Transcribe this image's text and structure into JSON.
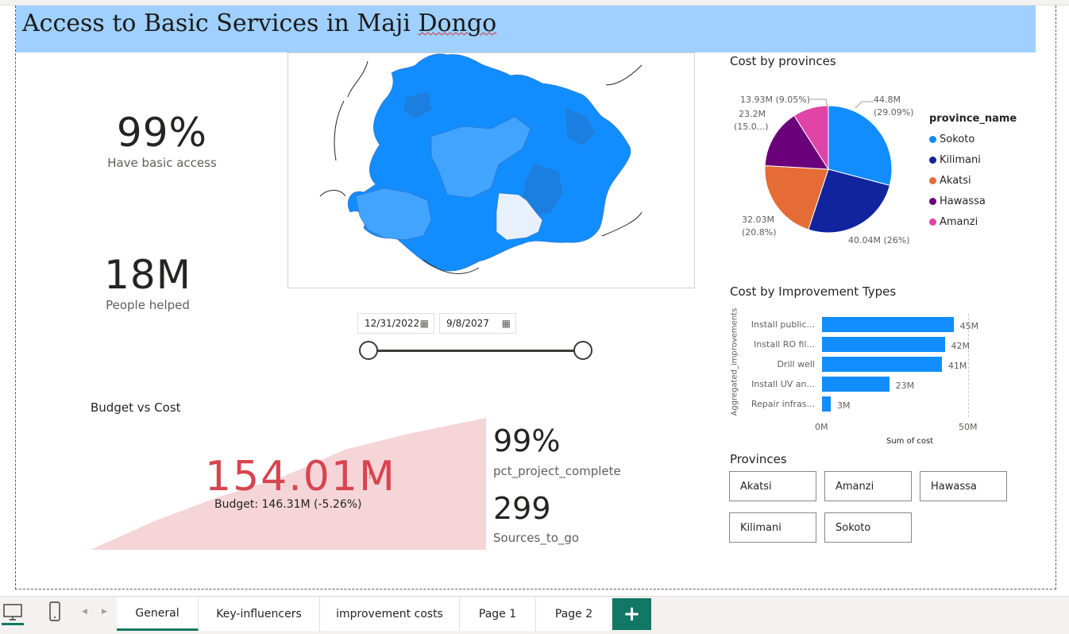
{
  "title": {
    "pre": "Access to Basic Services in Maji ",
    "squiggle": "Dongo"
  },
  "kpis": {
    "basic_access": {
      "value": "99%",
      "label": "Have basic access"
    },
    "people_helped": {
      "value": "18M",
      "label": "People helped"
    }
  },
  "date_filter": {
    "start": "12/31/2022",
    "end": "9/8/2027",
    "calendar_icon": "calendar-icon"
  },
  "budget_vs_cost": {
    "title": "Budget vs Cost",
    "value": "154.01M",
    "indicator": "!",
    "budget_text": "Budget: 146.31M (-5.26%)",
    "colors": {
      "value": "#d64550",
      "area": "#f5d5d8"
    }
  },
  "project_kpis": {
    "pct_complete": {
      "value": "99%",
      "label": "pct_project_complete"
    },
    "sources": {
      "value": "299",
      "label": "Sources_to_go"
    }
  },
  "cost_by_provinces": {
    "title": "Cost by provinces",
    "legend_title": "province_name",
    "labels": {
      "sokoto_a": "44.8M",
      "sokoto_b": "(29.09%)",
      "kilimani": "40.04M (26%)",
      "akatsi_a": "32.03M",
      "akatsi_b": "(20.8%)",
      "hawassa_a": "23.2M",
      "hawassa_b": "(15.0...)",
      "amanzi": "13.93M (9.05%)"
    },
    "legend": [
      "Sokoto",
      "Kilimani",
      "Akatsi",
      "Hawassa",
      "Amanzi"
    ]
  },
  "cost_by_improvement": {
    "title": "Cost by Improvement Types",
    "ylabel": "Aggregated_improvements",
    "xlabel": "Sum of cost",
    "ticks": [
      "0M",
      "50M"
    ]
  },
  "provinces_slicer": {
    "title": "Provinces",
    "items": [
      "Akatsi",
      "Amanzi",
      "Hawassa",
      "Kilimani",
      "Sokoto"
    ]
  },
  "tabs": [
    "General",
    "Key-influencers",
    "improvement costs",
    "Page 1",
    "Page 2"
  ],
  "add_tab": "+",
  "nav": {
    "prev": "◀",
    "next": "▶"
  },
  "colors": {
    "accent": "#117865",
    "title_bg": "#9fd0ff",
    "sokoto": "#118dff",
    "kilimani": "#12239e",
    "akatsi": "#e66c37",
    "hawassa": "#6b007b",
    "amanzi": "#e044a7",
    "bar": "#118dff"
  },
  "chart_data": [
    {
      "type": "pie",
      "title": "Cost by provinces",
      "categories": [
        "Sokoto",
        "Kilimani",
        "Akatsi",
        "Hawassa",
        "Amanzi"
      ],
      "values": [
        44.8,
        40.04,
        32.03,
        23.2,
        13.93
      ],
      "percent": [
        29.09,
        26,
        20.8,
        15.0,
        9.05
      ],
      "legend_position": "right"
    },
    {
      "type": "bar",
      "orientation": "horizontal",
      "title": "Cost by Improvement Types",
      "xlabel": "Sum of cost",
      "ylabel": "Aggregated_improvements",
      "categories": [
        "Install public...",
        "Install RO fil...",
        "Drill well",
        "Install UV an...",
        "Repair infras..."
      ],
      "values": [
        45,
        42,
        41,
        23,
        3
      ],
      "value_labels": [
        "45M",
        "42M",
        "41M",
        "23M",
        "3M"
      ],
      "xlim": [
        0,
        50
      ],
      "unit": "M"
    }
  ]
}
